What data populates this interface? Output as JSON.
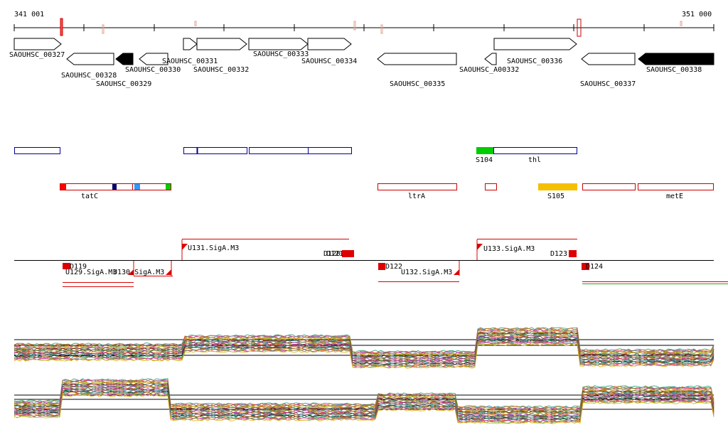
{
  "scale": {
    "start_label": "341 001",
    "end_label": "351 000"
  },
  "genes": [
    {
      "id": "SAOUHSC_00327",
      "label": "SAOUHSC_00327"
    },
    {
      "id": "SAOUHSC_00328",
      "label": "SAOUHSC_00328"
    },
    {
      "id": "SAOUHSC_00329",
      "label": "SAOUHSC_00329"
    },
    {
      "id": "SAOUHSC_00330",
      "label": "SAOUHSC_00330"
    },
    {
      "id": "SAOUHSC_00331",
      "label": "SAOUHSC_00331"
    },
    {
      "id": "SAOUHSC_00332",
      "label": "SAOUHSC_00332"
    },
    {
      "id": "SAOUHSC_00333",
      "label": "SAOUHSC_00333"
    },
    {
      "id": "SAOUHSC_00334",
      "label": "SAOUHSC_00334"
    },
    {
      "id": "SAOUHSC_00335",
      "label": "SAOUHSC_00335"
    },
    {
      "id": "SAOUHSC_A00332",
      "label": "SAOUHSC_A00332"
    },
    {
      "id": "SAOUHSC_00336",
      "label": "SAOUHSC_00336"
    },
    {
      "id": "SAOUHSC_00337",
      "label": "SAOUHSC_00337"
    },
    {
      "id": "SAOUHSC_00338",
      "label": "SAOUHSC_00338"
    }
  ],
  "segments": {
    "tatC": "tatC",
    "ltrA": "ltrA",
    "metE": "metE",
    "thl": "thl",
    "S104": "S104",
    "S105": "S105"
  },
  "transcripts": {
    "D119": "D119",
    "U129": "U129.SigA.M3",
    "U130": "U130.SigA.M3",
    "U131": "U131.SigA.M3",
    "D120": "D120",
    "D121": "D121",
    "D122": "D122",
    "U132": "U132.SigA.M3",
    "U133": "U133.SigA.M3",
    "D123": "D123",
    "D124": "D124"
  },
  "colors": {
    "gene_outline": "#000000",
    "segment_red": "#cc0000",
    "segment_blue": "#000099",
    "green": "#00cc00",
    "orange": "#f5c000",
    "sky": "#3399ff",
    "navy": "#000066",
    "transcript_red": "#dd0000",
    "tiling_green": "#22aa22"
  }
}
